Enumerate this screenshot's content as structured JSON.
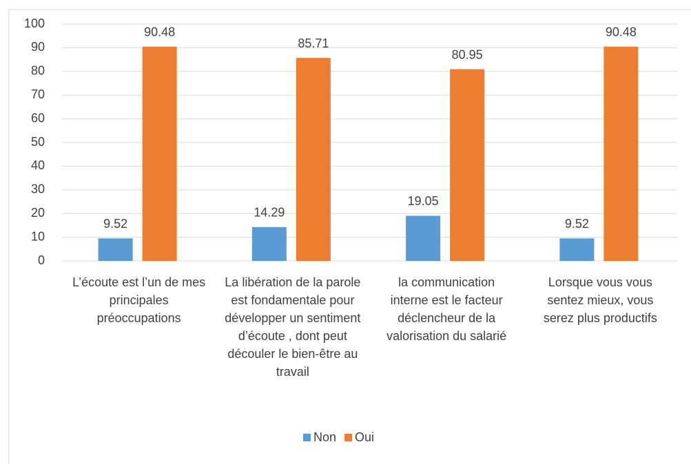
{
  "chart_data": {
    "type": "bar",
    "categories": [
      "L’écoute est  l’un de mes principales préoccupations",
      "La libération de la parole est fondamentale pour développer un sentiment d’écoute , dont peut découler le bien-être au travail",
      "la communication interne est  le facteur déclencheur de la valorisation du salarié",
      "Lorsque vous vous sentez mieux, vous serez plus productifs"
    ],
    "series": [
      {
        "name": "Non",
        "color": "#5b9bd5",
        "values": [
          9.52,
          14.29,
          19.05,
          9.52
        ]
      },
      {
        "name": "Oui",
        "color": "#ed7d31",
        "values": [
          90.48,
          85.71,
          80.95,
          90.48
        ]
      }
    ],
    "ylim": [
      0,
      100
    ],
    "yticks": [
      0,
      10,
      20,
      30,
      40,
      50,
      60,
      70,
      80,
      90,
      100
    ],
    "grid": true,
    "legend": "bottom"
  }
}
